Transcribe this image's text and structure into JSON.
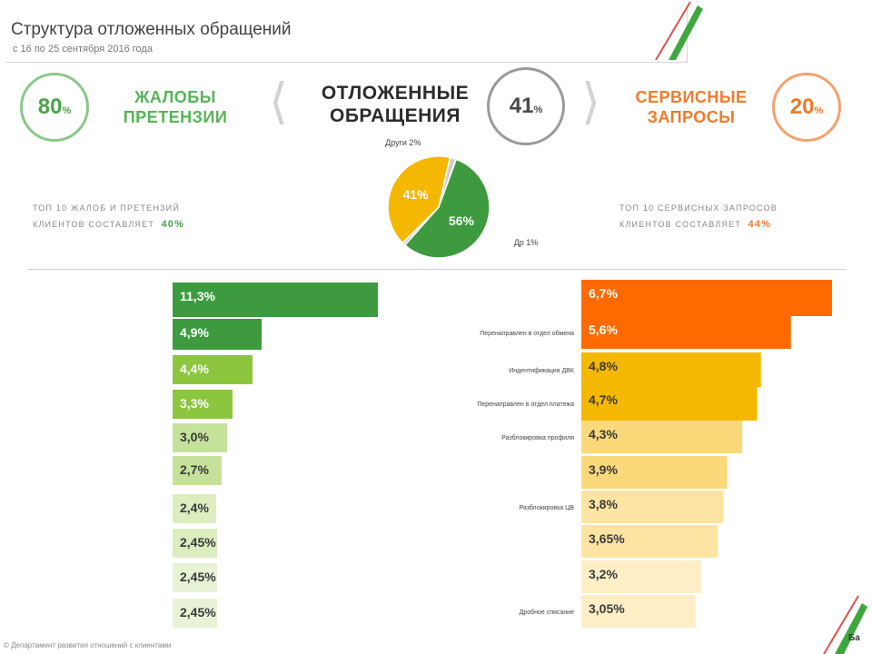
{
  "header": {
    "title": "Структура отложенных обращений",
    "subtitle": "с 16 по 25 сентября 2016 года"
  },
  "kpis": {
    "left": {
      "value": "80",
      "unit": "%",
      "label_line1": "ЖАЛОБЫ",
      "label_line2": "ПРЕТЕНЗИИ"
    },
    "center": {
      "value": "41",
      "unit": "%",
      "label_line1": "ОТЛОЖЕННЫЕ",
      "label_line2": "ОБРАЩЕНИЯ"
    },
    "right": {
      "value": "20",
      "unit": "%",
      "label_line1": "СЕРВИСНЫЕ",
      "label_line2": "ЗАПРОСЫ"
    }
  },
  "top10": {
    "left_line1": "ТОП 10 ЖАЛОБ И ПРЕТЕНЗИЙ",
    "left_line2": "КЛИЕНТОВ СОСТАВЛЯЕТ",
    "left_value": "40%",
    "right_line1": "ТОП 10 СЕРВИСНЫХ ЗАПРОСОВ",
    "right_line2": "КЛИЕНТОВ СОСТАВЛЯЕТ",
    "right_value": "44%"
  },
  "colors": {
    "green_dark": "#3e9a3e",
    "green": "#5fb346",
    "green_light": "#8cc63f",
    "yellow": "#f5b800",
    "orange": "#ff6a00"
  },
  "chart_data": [
    {
      "type": "pie",
      "title": "",
      "slices": [
        {
          "label": "",
          "value": 56,
          "value_label": "56%",
          "color": "#3e9a3e"
        },
        {
          "label": "Др 1%",
          "value": 1,
          "value_label": "",
          "color": "#cfcfcf"
        },
        {
          "label": "",
          "value": 41,
          "value_label": "41%",
          "color": "#f5b800"
        },
        {
          "label": "Други 2%",
          "value": 2,
          "value_label": "",
          "color": "#cfcfcf"
        }
      ]
    },
    {
      "type": "bar",
      "orientation": "horizontal",
      "title": "",
      "xlim": [
        0,
        11.3
      ],
      "categories": [
        "",
        "",
        "",
        "",
        "",
        "",
        "",
        "",
        "",
        ""
      ],
      "values": [
        11.3,
        4.9,
        4.4,
        3.3,
        3.0,
        2.7,
        2.4,
        2.45,
        2.45,
        2.45
      ],
      "value_labels": [
        "11,3%",
        "4,9%",
        "4,4%",
        "3,3%",
        "3,0%",
        "2,7%",
        "2,4%",
        "2,45%",
        "2,45%",
        "2,45%"
      ],
      "colors": [
        "#3e9a3e",
        "#3e9a3e",
        "#8cc63f",
        "#8cc63f",
        "#c6e29a",
        "#c6e29a",
        "#dcedc0",
        "#dcedc0",
        "#e8f3d6",
        "#e8f3d6"
      ]
    },
    {
      "type": "bar",
      "orientation": "horizontal",
      "title": "",
      "xlim": [
        0,
        6.7
      ],
      "categories": [
        "",
        "Перенаправлен в отдел обмена",
        "Индентификация ДВК",
        "Перенаправлен в отдел платежа",
        "Разблокировка профиля",
        "",
        "Разблокировка ЦВ",
        "",
        "",
        "Дробное списание"
      ],
      "values": [
        6.7,
        5.6,
        4.8,
        4.7,
        4.3,
        3.9,
        3.8,
        3.65,
        3.2,
        3.05
      ],
      "value_labels": [
        "6,7%",
        "5,6%",
        "4,8%",
        "4,7%",
        "4,3%",
        "3,9%",
        "3,8%",
        "3,65%",
        "3,2%",
        "3,05%"
      ],
      "colors": [
        "#ff6a00",
        "#ff6a00",
        "#f5b800",
        "#f5b800",
        "#fbd97a",
        "#fbd97a",
        "#fde4a3",
        "#fde4a3",
        "#fdeec6",
        "#fdeec6"
      ]
    }
  ],
  "footnote": "© Департамент развития отношений с клиентами",
  "logo_text": "Ба"
}
